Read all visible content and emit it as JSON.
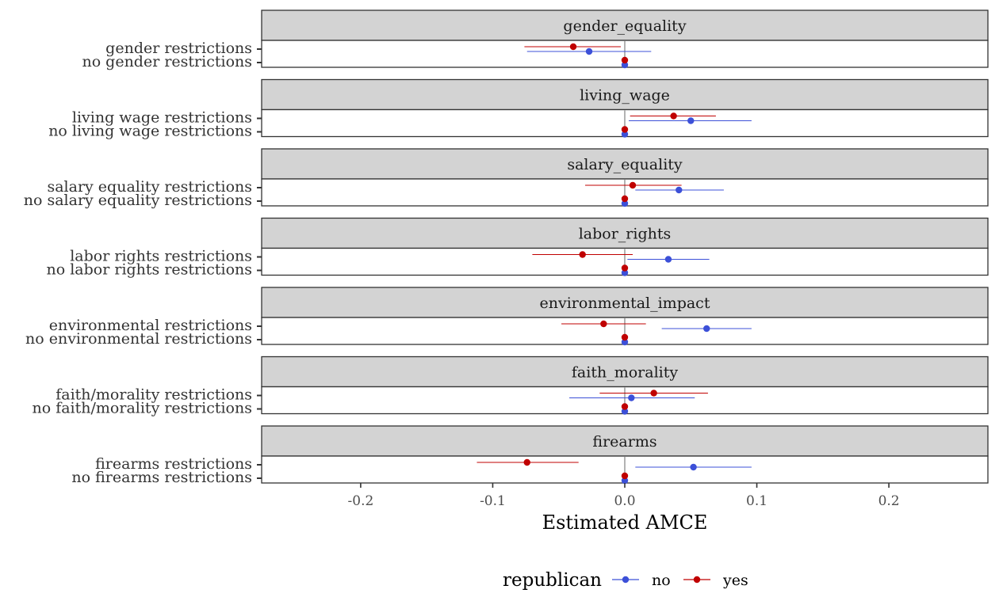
{
  "chart_data": {
    "type": "scatter",
    "subtype": "dot-and-whisker, faceted",
    "xlabel": "Estimated AMCE",
    "xlim": [
      -0.275,
      0.275
    ],
    "x_ticks": [
      -0.2,
      -0.1,
      0.0,
      0.1,
      0.2
    ],
    "x_tick_labels": [
      "-0.2",
      "-0.1",
      "0.0",
      "0.1",
      "0.2"
    ],
    "reference_line": 0,
    "legend": {
      "title": "republican",
      "placement": "bottom",
      "entries": [
        {
          "key": "no",
          "label": "no",
          "color": "#3c50d8"
        },
        {
          "key": "yes",
          "label": "yes",
          "color": "#c00000"
        }
      ]
    },
    "colors": {
      "no": "#3c50d8",
      "yes": "#c00000",
      "strip_bg": "#d3d3d3",
      "zero_line": "#b3b3b3"
    },
    "panels": [
      {
        "title": "gender_equality",
        "rows": [
          {
            "label": "gender restrictions",
            "no": {
              "est": -0.027,
              "lo": -0.074,
              "hi": 0.02
            },
            "yes": {
              "est": -0.039,
              "lo": -0.076,
              "hi": -0.003
            }
          },
          {
            "label": "no gender restrictions",
            "no": {
              "est": 0,
              "lo": 0,
              "hi": 0
            },
            "yes": {
              "est": 0,
              "lo": 0,
              "hi": 0
            }
          }
        ]
      },
      {
        "title": "living_wage",
        "rows": [
          {
            "label": "living wage restrictions",
            "no": {
              "est": 0.05,
              "lo": 0.003,
              "hi": 0.096
            },
            "yes": {
              "est": 0.037,
              "lo": 0.004,
              "hi": 0.069
            }
          },
          {
            "label": "no living wage restrictions",
            "no": {
              "est": 0,
              "lo": 0,
              "hi": 0
            },
            "yes": {
              "est": 0,
              "lo": 0,
              "hi": 0
            }
          }
        ]
      },
      {
        "title": "salary_equality",
        "rows": [
          {
            "label": "salary equality restrictions",
            "no": {
              "est": 0.041,
              "lo": 0.008,
              "hi": 0.075
            },
            "yes": {
              "est": 0.006,
              "lo": -0.03,
              "hi": 0.043
            }
          },
          {
            "label": "no salary equality restrictions",
            "no": {
              "est": 0,
              "lo": 0,
              "hi": 0
            },
            "yes": {
              "est": 0,
              "lo": 0,
              "hi": 0
            }
          }
        ]
      },
      {
        "title": "labor_rights",
        "rows": [
          {
            "label": "labor rights restrictions",
            "no": {
              "est": 0.033,
              "lo": 0.002,
              "hi": 0.064
            },
            "yes": {
              "est": -0.032,
              "lo": -0.07,
              "hi": 0.006
            }
          },
          {
            "label": "no labor rights restrictions",
            "no": {
              "est": 0,
              "lo": 0,
              "hi": 0
            },
            "yes": {
              "est": 0,
              "lo": 0,
              "hi": 0
            }
          }
        ]
      },
      {
        "title": "environmental_impact",
        "rows": [
          {
            "label": "environmental restrictions",
            "no": {
              "est": 0.062,
              "lo": 0.028,
              "hi": 0.096
            },
            "yes": {
              "est": -0.016,
              "lo": -0.048,
              "hi": 0.016
            }
          },
          {
            "label": "no environmental restrictions",
            "no": {
              "est": 0,
              "lo": 0,
              "hi": 0
            },
            "yes": {
              "est": 0,
              "lo": 0,
              "hi": 0
            }
          }
        ]
      },
      {
        "title": "faith_morality",
        "rows": [
          {
            "label": "faith/morality restrictions",
            "no": {
              "est": 0.005,
              "lo": -0.042,
              "hi": 0.053
            },
            "yes": {
              "est": 0.022,
              "lo": -0.019,
              "hi": 0.063
            }
          },
          {
            "label": "no faith/morality restrictions",
            "no": {
              "est": 0,
              "lo": 0,
              "hi": 0
            },
            "yes": {
              "est": 0,
              "lo": 0,
              "hi": 0
            }
          }
        ]
      },
      {
        "title": "firearms",
        "rows": [
          {
            "label": "firearms restrictions",
            "no": {
              "est": 0.052,
              "lo": 0.008,
              "hi": 0.096
            },
            "yes": {
              "est": -0.074,
              "lo": -0.112,
              "hi": -0.035
            }
          },
          {
            "label": "no firearms restrictions",
            "no": {
              "est": 0,
              "lo": 0,
              "hi": 0
            },
            "yes": {
              "est": 0,
              "lo": 0,
              "hi": 0
            }
          }
        ]
      }
    ]
  }
}
